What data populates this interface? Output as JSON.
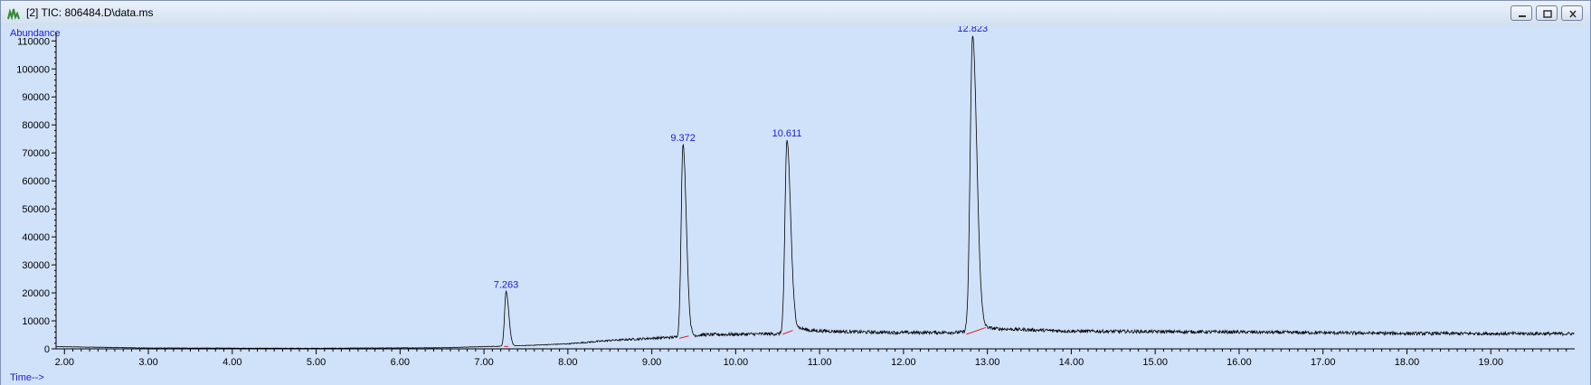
{
  "window": {
    "title": "[2] TIC: 806484.D\\data.ms",
    "icon": "chromatogram-app-icon",
    "controls": [
      "minimize-icon",
      "restore-icon",
      "close-icon"
    ]
  },
  "chart_data": {
    "type": "line",
    "ylabel": "Abundance",
    "xlabel": "Time-->",
    "xlim": [
      1.9,
      20.0
    ],
    "ylim": [
      0,
      113000
    ],
    "x_ticks": [
      "2.00",
      "3.00",
      "4.00",
      "5.00",
      "6.00",
      "7.00",
      "8.00",
      "9.00",
      "10.00",
      "11.00",
      "12.00",
      "13.00",
      "14.00",
      "15.00",
      "16.00",
      "17.00",
      "18.00",
      "19.00"
    ],
    "y_ticks": [
      "0",
      "10000",
      "20000",
      "30000",
      "40000",
      "50000",
      "60000",
      "70000",
      "80000",
      "90000",
      "100000",
      "110000"
    ],
    "line_color": "#000000",
    "baseline_color": "#e02020",
    "label_color": "#1a1ad6",
    "baseline_points": [
      [
        1.9,
        800
      ],
      [
        3.0,
        300
      ],
      [
        5.0,
        200
      ],
      [
        6.5,
        400
      ],
      [
        7.0,
        800
      ],
      [
        7.5,
        1200
      ],
      [
        8.0,
        1800
      ],
      [
        8.5,
        3000
      ],
      [
        9.0,
        3800
      ],
      [
        9.3,
        4200
      ],
      [
        9.6,
        5000
      ],
      [
        10.0,
        5200
      ],
      [
        10.55,
        5400
      ],
      [
        10.7,
        7800
      ],
      [
        10.9,
        6500
      ],
      [
        11.5,
        6000
      ],
      [
        12.0,
        5800
      ],
      [
        12.7,
        5900
      ],
      [
        12.9,
        8000
      ],
      [
        13.1,
        7200
      ],
      [
        14.0,
        6300
      ],
      [
        16.0,
        6000
      ],
      [
        18.0,
        5500
      ],
      [
        20.0,
        5400
      ]
    ],
    "noise_amplitude": 1200,
    "peaks": [
      {
        "label": "7.263",
        "rt": 7.263,
        "height": 20500,
        "width": 0.018
      },
      {
        "label": "9.372",
        "rt": 9.372,
        "height": 73000,
        "width": 0.022
      },
      {
        "label": "10.611",
        "rt": 10.611,
        "height": 74500,
        "width": 0.024
      },
      {
        "label": "12.823",
        "rt": 12.823,
        "height": 112000,
        "width": 0.028
      }
    ],
    "integration_baselines": [
      {
        "from": [
          7.24,
          800
        ],
        "to": [
          7.29,
          900
        ]
      },
      {
        "from": [
          9.33,
          3800
        ],
        "to": [
          9.44,
          4600
        ]
      },
      {
        "from": [
          10.56,
          5200
        ],
        "to": [
          10.68,
          6600
        ]
      },
      {
        "from": [
          12.75,
          5200
        ],
        "to": [
          12.98,
          7600
        ]
      }
    ]
  }
}
